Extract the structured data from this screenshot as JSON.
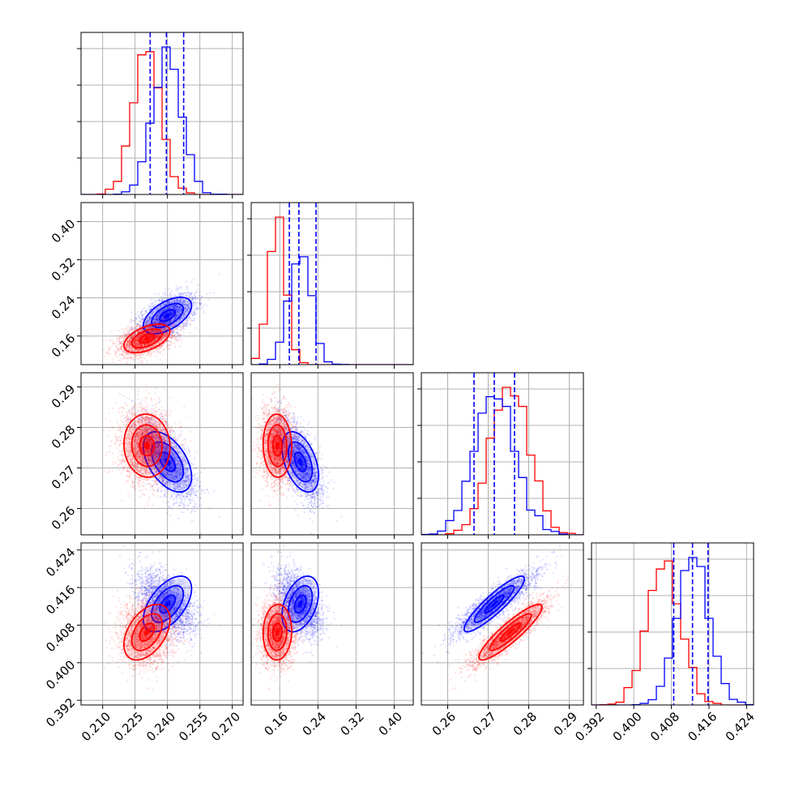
{
  "chart_data": {
    "type": "corner",
    "grid": true,
    "series": [
      {
        "color": "#0000ff",
        "means": [
          0.24,
          0.203,
          0.2715,
          0.4125
        ],
        "sds": [
          0.0066,
          0.0226,
          0.0044,
          0.0035
        ],
        "quantiles": [
          [
            0.232,
            0.2395,
            0.2475
          ],
          [
            0.18,
            0.2,
            0.236
          ],
          [
            0.2665,
            0.2715,
            0.2765
          ],
          [
            0.4085,
            0.4125,
            0.4158
          ]
        ],
        "correlations": [
          [
            0,
            1,
            0.55
          ],
          [
            0,
            2,
            -0.5
          ],
          [
            1,
            2,
            -0.45
          ],
          [
            0,
            3,
            0.55
          ],
          [
            1,
            3,
            0.4
          ],
          [
            2,
            3,
            0.9
          ]
        ]
      },
      {
        "color": "#ff0000",
        "means": [
          0.2305,
          0.155,
          0.2755,
          0.4065
        ],
        "sds": [
          0.0063,
          0.0177,
          0.0046,
          0.0035
        ],
        "quantiles": null,
        "correlations": [
          [
            0,
            1,
            0.5
          ],
          [
            0,
            2,
            -0.05
          ],
          [
            1,
            2,
            -0.05
          ],
          [
            0,
            3,
            0.45
          ],
          [
            1,
            3,
            0.05
          ],
          [
            2,
            3,
            0.9
          ]
        ]
      }
    ],
    "params": [
      {
        "lim": [
          0.2,
          0.275
        ],
        "ticks": [
          0.21,
          0.225,
          0.24,
          0.255,
          0.27
        ],
        "tick_labels": [
          "0.210",
          "0.225",
          "0.240",
          "0.255",
          "0.270"
        ]
      },
      {
        "lim": [
          0.1,
          0.44
        ],
        "ticks": [
          0.16,
          0.24,
          0.32,
          0.4
        ],
        "tick_labels": [
          "0.16",
          "0.24",
          "0.32",
          "0.40"
        ]
      },
      {
        "lim": [
          0.2535,
          0.2935
        ],
        "ticks": [
          0.26,
          0.27,
          0.28,
          0.29
        ],
        "tick_labels": [
          "0.26",
          "0.27",
          "0.28",
          "0.29"
        ]
      },
      {
        "lim": [
          0.391,
          0.4255
        ],
        "ticks": [
          0.392,
          0.4,
          0.408,
          0.416,
          0.424
        ],
        "tick_labels": [
          "0.392",
          "0.400",
          "0.408",
          "0.416",
          "0.424"
        ]
      }
    ],
    "contour_levels": [
      0.11,
      0.39,
      0.68
    ],
    "scatter_alpha": 0.12
  }
}
